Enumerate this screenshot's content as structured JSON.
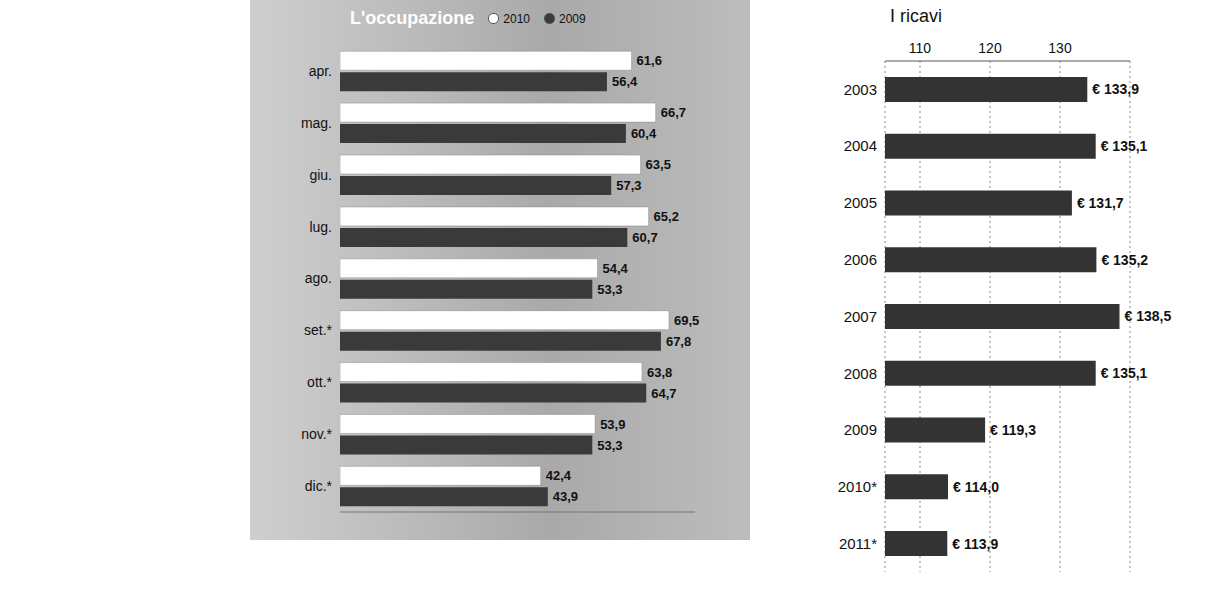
{
  "chart_data": [
    {
      "type": "bar",
      "title": "L'occupazione",
      "orientation": "horizontal",
      "categories": [
        "apr.",
        "mag.",
        "giu.",
        "lug.",
        "ago.",
        "set.*",
        "ott.*",
        "nov.*",
        "dic.*"
      ],
      "series": [
        {
          "name": "2010",
          "color": "#ffffff",
          "values": [
            61.6,
            66.7,
            63.5,
            65.2,
            54.4,
            69.5,
            63.8,
            53.9,
            42.4
          ],
          "value_labels": [
            "61,6",
            "66,7",
            "63,5",
            "65,2",
            "54,4",
            "69,5",
            "63,8",
            "53,9",
            "42,4"
          ]
        },
        {
          "name": "2009",
          "color": "#3a3a3a",
          "values": [
            56.4,
            60.4,
            57.3,
            60.7,
            53.3,
            67.8,
            64.7,
            53.3,
            43.9
          ],
          "value_labels": [
            "56,4",
            "60,4",
            "57,3",
            "60,7",
            "53,3",
            "67,8",
            "64,7",
            "53,3",
            "43,9"
          ]
        }
      ],
      "xlim": [
        0,
        75
      ],
      "tick_labels": "y",
      "data_labels": true,
      "legend": "top",
      "grid": false
    },
    {
      "type": "bar",
      "title": "I ricavi",
      "orientation": "horizontal",
      "categories": [
        "2003",
        "2004",
        "2005",
        "2006",
        "2007",
        "2008",
        "2009",
        "2010*",
        "2011*"
      ],
      "values": [
        133.9,
        135.1,
        131.7,
        135.2,
        138.5,
        135.1,
        119.3,
        114.0,
        113.9
      ],
      "value_labels": [
        "€ 133,9",
        "€ 135,1",
        "€ 131,7",
        "€ 135,2",
        "€ 138,5",
        "€ 135,1",
        "€ 119,3",
        "€ 114,0",
        "€ 113,9"
      ],
      "color": "#333333",
      "xlim": [
        105,
        140
      ],
      "xticks": [
        110,
        120,
        130
      ],
      "grid": true,
      "data_labels": true
    }
  ]
}
